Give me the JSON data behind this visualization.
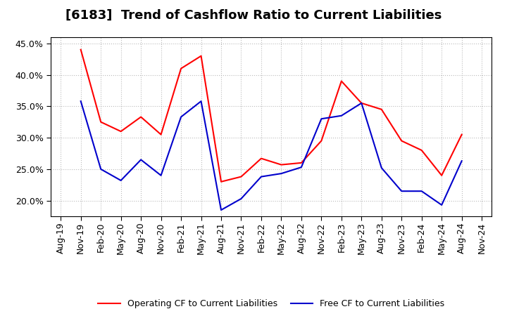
{
  "title": "[6183]  Trend of Cashflow Ratio to Current Liabilities",
  "ylim": [
    0.175,
    0.46
  ],
  "yticks": [
    0.2,
    0.25,
    0.3,
    0.35,
    0.4,
    0.45
  ],
  "x_labels": [
    "Aug-19",
    "Nov-19",
    "Feb-20",
    "May-20",
    "Aug-20",
    "Nov-20",
    "Feb-21",
    "May-21",
    "Aug-21",
    "Nov-21",
    "Feb-22",
    "May-22",
    "Aug-22",
    "Nov-22",
    "Feb-23",
    "May-23",
    "Aug-23",
    "Nov-23",
    "Feb-24",
    "May-24",
    "Aug-24",
    "Nov-24"
  ],
  "operating_cf": [
    null,
    0.44,
    0.325,
    0.31,
    0.333,
    0.305,
    0.41,
    0.43,
    0.23,
    0.238,
    0.267,
    0.257,
    0.26,
    0.295,
    0.39,
    0.355,
    0.345,
    0.295,
    0.28,
    0.24,
    0.305,
    null
  ],
  "free_cf": [
    null,
    0.358,
    0.25,
    0.232,
    0.265,
    0.24,
    0.333,
    0.358,
    0.185,
    0.203,
    0.238,
    0.243,
    0.253,
    0.33,
    0.335,
    0.355,
    0.252,
    0.215,
    0.215,
    0.193,
    0.263,
    null
  ],
  "operating_color": "#ff0000",
  "free_color": "#0000cc",
  "background_color": "#ffffff",
  "grid_color": "#aaaaaa",
  "legend_labels": [
    "Operating CF to Current Liabilities",
    "Free CF to Current Liabilities"
  ],
  "title_fontsize": 13,
  "tick_fontsize": 9
}
